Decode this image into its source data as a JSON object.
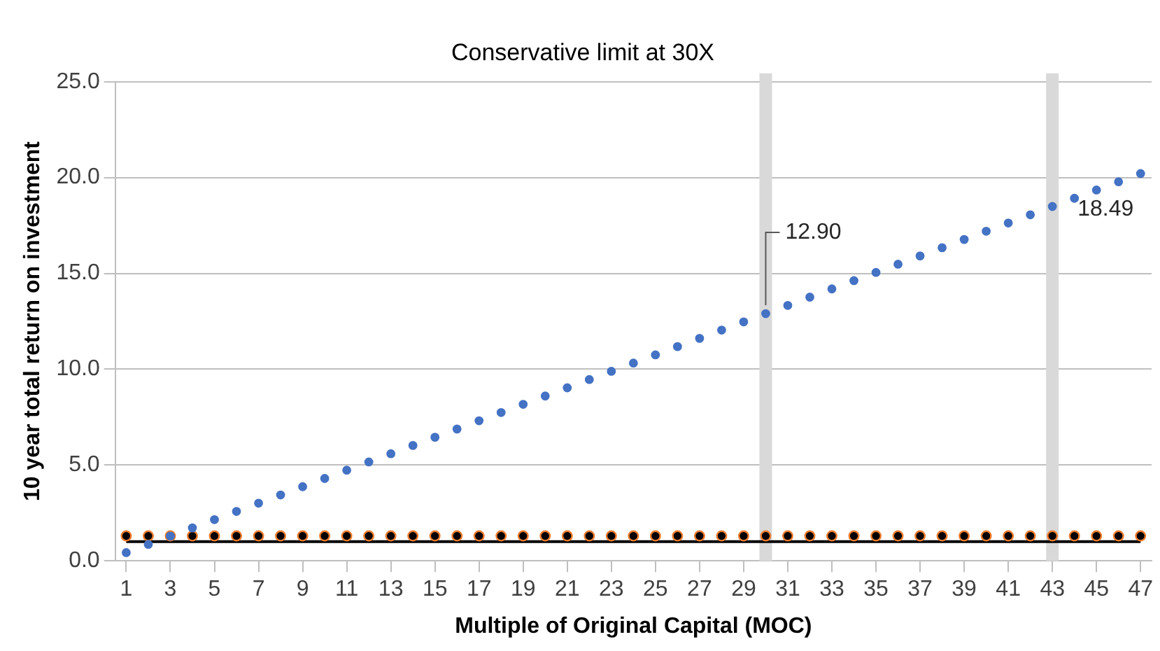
{
  "chart_data": {
    "type": "scatter",
    "title": "Conservative limit at 30X",
    "xlabel": "Multiple of Original Capital (MOC)",
    "ylabel": "10 year total return on investment",
    "x": [
      1,
      2,
      3,
      4,
      5,
      6,
      7,
      8,
      9,
      10,
      11,
      12,
      13,
      14,
      15,
      16,
      17,
      18,
      19,
      20,
      21,
      22,
      23,
      24,
      25,
      26,
      27,
      28,
      29,
      30,
      31,
      32,
      33,
      34,
      35,
      36,
      37,
      38,
      39,
      40,
      41,
      42,
      43,
      44,
      45,
      46,
      47
    ],
    "series": [
      {
        "type": "line",
        "color": "#000000",
        "marker": "none",
        "values": [
          1,
          1,
          1,
          1,
          1,
          1,
          1,
          1,
          1,
          1,
          1,
          1,
          1,
          1,
          1,
          1,
          1,
          1,
          1,
          1,
          1,
          1,
          1,
          1,
          1,
          1,
          1,
          1,
          1,
          1,
          1,
          1,
          1,
          1,
          1,
          1,
          1,
          1,
          1,
          1,
          1,
          1,
          1,
          1,
          1,
          1,
          1
        ]
      },
      {
        "type": "scatter",
        "color": "#ed7d31",
        "values": [
          1.3,
          1.3,
          1.3,
          1.3,
          1.3,
          1.3,
          1.3,
          1.3,
          1.3,
          1.3,
          1.3,
          1.3,
          1.3,
          1.3,
          1.3,
          1.3,
          1.3,
          1.3,
          1.3,
          1.3,
          1.3,
          1.3,
          1.3,
          1.3,
          1.3,
          1.3,
          1.3,
          1.3,
          1.3,
          1.3,
          1.3,
          1.3,
          1.3,
          1.3,
          1.3,
          1.3,
          1.3,
          1.3,
          1.3,
          1.3,
          1.3,
          1.3,
          1.3,
          1.3,
          1.3,
          1.3,
          1.3
        ]
      },
      {
        "color": "#4472c4",
        "values": [
          0.43,
          0.86,
          1.29,
          1.72,
          2.15,
          2.58,
          3.01,
          3.44,
          3.87,
          4.3,
          4.73,
          5.16,
          5.59,
          6.02,
          6.45,
          6.88,
          7.31,
          7.74,
          8.17,
          8.6,
          9.03,
          9.46,
          9.89,
          10.32,
          10.75,
          11.18,
          11.61,
          12.04,
          12.47,
          12.9,
          13.33,
          13.76,
          14.19,
          14.62,
          15.05,
          15.48,
          15.91,
          16.34,
          16.77,
          17.2,
          17.63,
          18.06,
          18.49,
          18.92,
          19.35,
          19.78,
          20.21
        ]
      }
    ],
    "xlim": [
      0.5,
      47.5
    ],
    "xticks": [
      1,
      3,
      5,
      7,
      9,
      11,
      13,
      15,
      17,
      19,
      21,
      23,
      25,
      27,
      29,
      31,
      33,
      35,
      37,
      39,
      41,
      43,
      45,
      47
    ],
    "ylim": [
      0,
      25
    ],
    "yticks": [
      {
        "value": 0,
        "label": "0.0"
      },
      {
        "value": 5,
        "label": "5.0"
      },
      {
        "value": 10,
        "label": "10.0"
      },
      {
        "value": 15,
        "label": "15.0"
      },
      {
        "value": 20,
        "label": "20.0"
      },
      {
        "value": 25,
        "label": "25.0"
      }
    ],
    "ref_lines": [
      {
        "axis": "x",
        "value": 30,
        "color": "#d9d9d9"
      },
      {
        "axis": "x",
        "value": 43,
        "color": "#d9d9d9"
      }
    ],
    "annotations": [
      {
        "text": "12.90",
        "x": 30,
        "y": 12.9
      },
      {
        "text": "18.49",
        "x": 43,
        "y": 18.49
      }
    ],
    "grid": "y",
    "legend": false,
    "marker": "circle"
  }
}
